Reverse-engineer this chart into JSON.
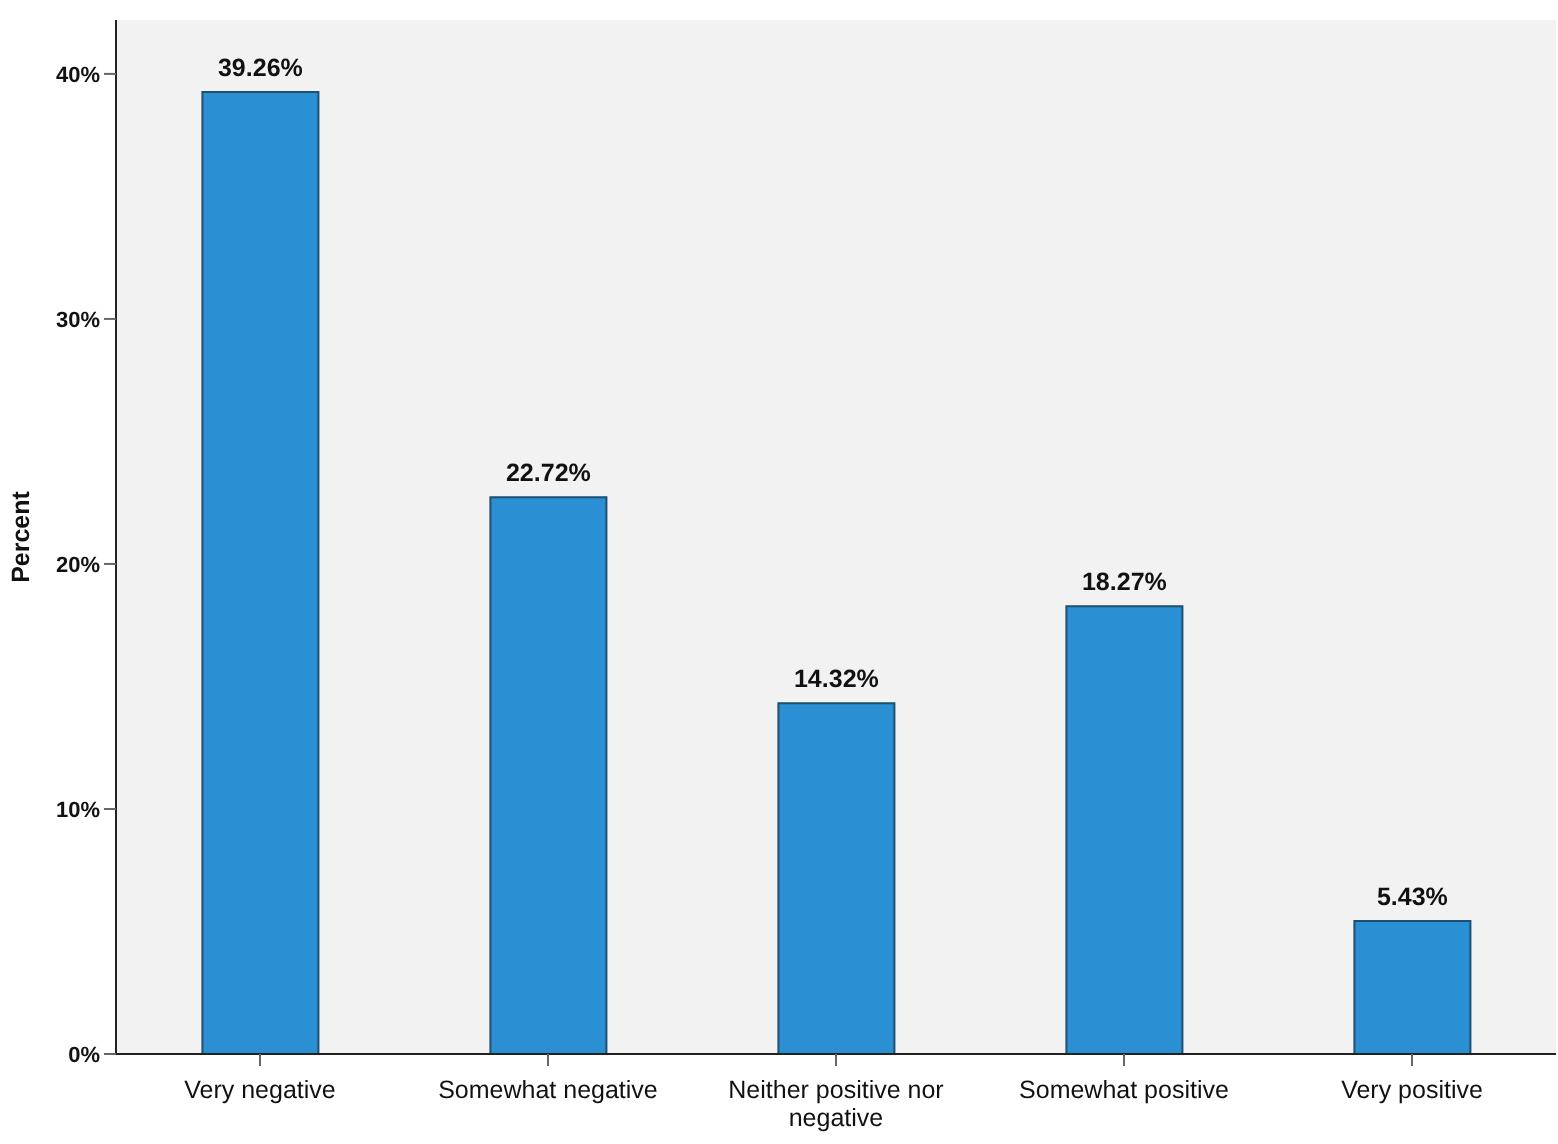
{
  "chart_data": {
    "type": "bar",
    "ylabel": "Percent",
    "categories": [
      "Very negative",
      "Somewhat negative",
      "Neither positive nor negative",
      "Somewhat positive",
      "Very positive"
    ],
    "values": [
      39.26,
      22.72,
      14.32,
      18.27,
      5.43
    ],
    "value_labels": [
      "39.26%",
      "22.72%",
      "14.32%",
      "18.27%",
      "5.43%"
    ],
    "color": "#2b8fd3",
    "ylim": [
      0,
      42.2
    ],
    "yticks": [
      {
        "value": 0,
        "label": "0%"
      },
      {
        "value": 10,
        "label": "10%"
      },
      {
        "value": 20,
        "label": "20%"
      },
      {
        "value": 30,
        "label": "30%"
      },
      {
        "value": 40,
        "label": "40%"
      }
    ],
    "grid": false,
    "legend": false
  }
}
